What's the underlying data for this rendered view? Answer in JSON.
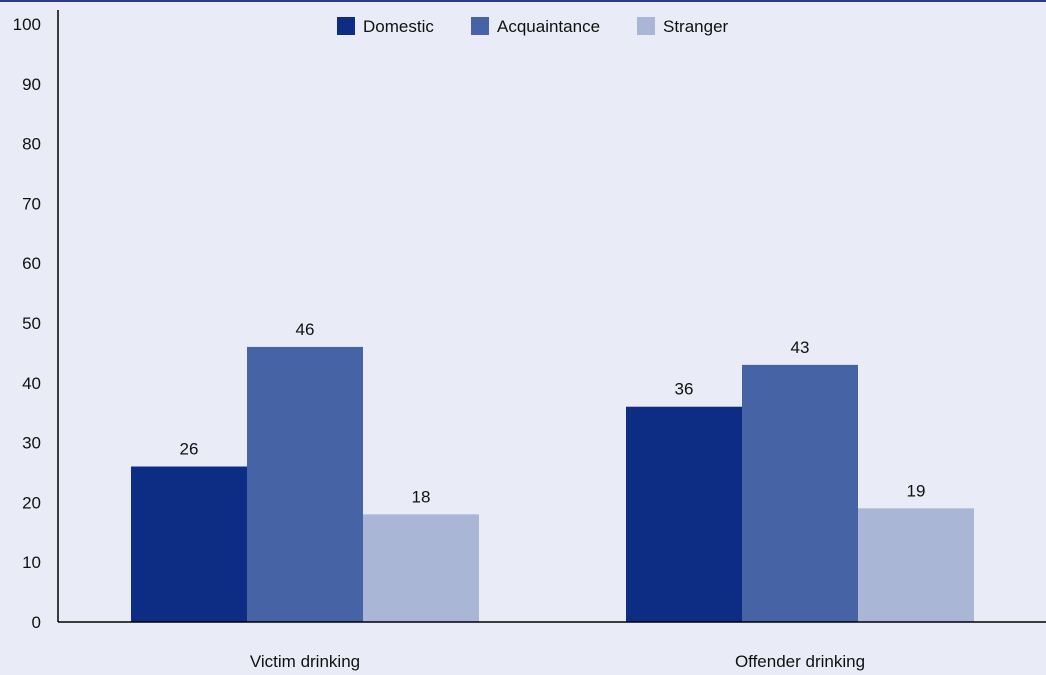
{
  "colors": {
    "background": "#e9ecf6",
    "top_rule": "#2a3a8a",
    "axis": "#000000"
  },
  "chart_data": {
    "type": "bar",
    "categories": [
      "Victim drinking",
      "Offender drinking"
    ],
    "series": [
      {
        "name": "Domestic",
        "color": "#0d2d84",
        "values": [
          26,
          36
        ]
      },
      {
        "name": "Acquaintance",
        "color": "#4663a6",
        "values": [
          46,
          43
        ]
      },
      {
        "name": "Stranger",
        "color": "#a9b6d6",
        "values": [
          18,
          19
        ]
      }
    ],
    "ylim": [
      0,
      100
    ],
    "yticks": [
      0,
      10,
      20,
      30,
      40,
      50,
      60,
      70,
      80,
      90,
      100
    ],
    "legend": "top-center",
    "grid": false,
    "title": "",
    "xlabel": "",
    "ylabel": ""
  }
}
